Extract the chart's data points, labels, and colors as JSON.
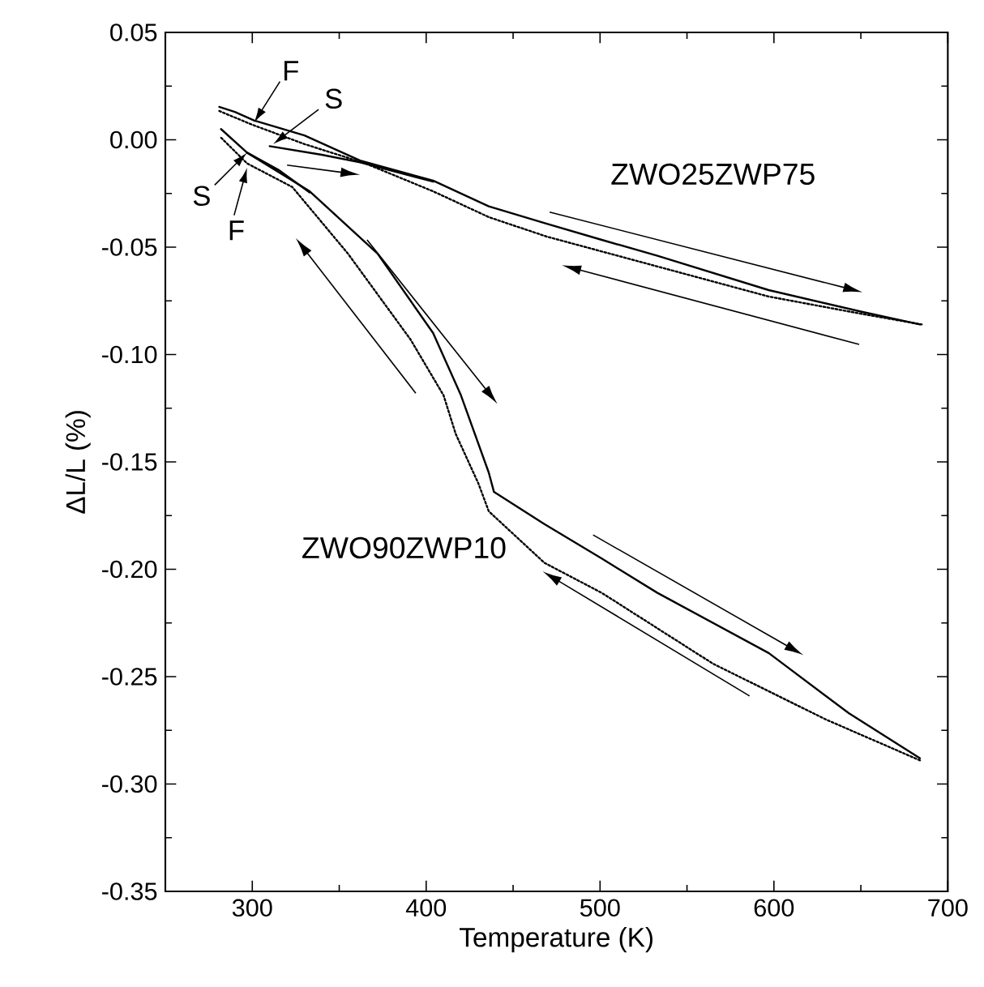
{
  "chart_data": {
    "type": "line",
    "xlabel": "Temperature (K)",
    "ylabel": "ΔL/L (%)",
    "xlim": [
      250,
      700
    ],
    "xticks": [
      300,
      400,
      500,
      600,
      700
    ],
    "ylim": [
      -0.35,
      0.05
    ],
    "yticks": [
      {
        "value": -0.35,
        "label": "-0.35"
      },
      {
        "value": -0.3,
        "label": "-0.30"
      },
      {
        "value": -0.25,
        "label": "-0.25"
      },
      {
        "value": -0.2,
        "label": "-0.20"
      },
      {
        "value": -0.15,
        "label": "-0.15"
      },
      {
        "value": -0.1,
        "label": "-0.10"
      },
      {
        "value": -0.05,
        "label": "-0.05"
      },
      {
        "value": 0,
        "label": "0.00"
      },
      {
        "value": 0.05,
        "label": "0.05"
      }
    ],
    "grid": false,
    "marker": "none",
    "series": [
      {
        "color": "#000000",
        "line_style": "solid",
        "x": [
          281,
          290,
          301,
          330,
          362,
          404,
          436,
          469,
          501,
          533,
          597,
          650,
          684
        ],
        "values": [
          0.0153,
          0.013,
          0.009,
          0.002,
          -0.0097,
          -0.019,
          -0.031,
          -0.039,
          -0.0466,
          -0.054,
          -0.07,
          -0.08,
          -0.086
        ]
      },
      {
        "color": "#000000",
        "line_style": "solid",
        "x": [
          310,
          340,
          362,
          404
        ],
        "values": [
          -0.003,
          -0.007,
          -0.0105,
          -0.0195
        ]
      },
      {
        "color": "#000000",
        "line_style": "dotted",
        "x": [
          281,
          300,
          330,
          365,
          404,
          436,
          469,
          501,
          533,
          597,
          650,
          685
        ],
        "values": [
          0.0134,
          0.007,
          -0.002,
          -0.011,
          -0.024,
          -0.036,
          -0.045,
          -0.052,
          -0.059,
          -0.073,
          -0.081,
          -0.086
        ]
      },
      {
        "color": "#000000",
        "line_style": "solid",
        "x": [
          282,
          297,
          333,
          372,
          404,
          420,
          436,
          439,
          468,
          501,
          533,
          597,
          643,
          684
        ],
        "values": [
          0.005,
          -0.006,
          -0.024,
          -0.053,
          -0.09,
          -0.119,
          -0.155,
          -0.164,
          -0.179,
          -0.195,
          -0.211,
          -0.239,
          -0.267,
          -0.288
        ]
      },
      {
        "color": "#000000",
        "line_style": "solid",
        "x": [
          297,
          315,
          333
        ],
        "values": [
          -0.006,
          -0.014,
          -0.0245
        ]
      },
      {
        "color": "#000000",
        "line_style": "dotted",
        "x": [
          684,
          630,
          565,
          501,
          468,
          436,
          430,
          417,
          410,
          391,
          355,
          323,
          297,
          282
        ],
        "values": [
          -0.289,
          -0.27,
          -0.244,
          -0.211,
          -0.197,
          -0.173,
          -0.16,
          -0.137,
          -0.119,
          -0.093,
          -0.053,
          -0.022,
          -0.011,
          0.001
        ]
      }
    ],
    "annotations": [
      {
        "text": "F",
        "x": 301,
        "y": 0.008
      },
      {
        "text": "S",
        "x": 312,
        "y": -0.002
      },
      {
        "text": "S",
        "x": 297,
        "y": -0.006
      },
      {
        "text": "F",
        "x": 297,
        "y": -0.013
      },
      "ZWO25ZWP75",
      "ZWO90ZWP10"
    ]
  }
}
